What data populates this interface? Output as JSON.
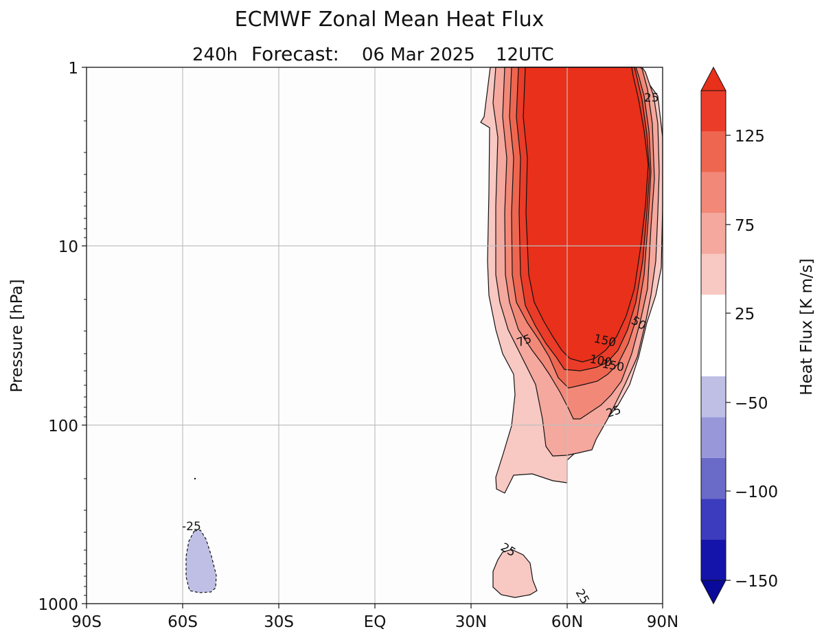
{
  "chart_data": {
    "type": "contour",
    "title": "ECMWF Zonal Mean Heat Flux",
    "subtitle": "240h Forecast:  06 Mar 2025  12UTC",
    "subtitle_parts": [
      "240h",
      "Forecast:",
      "06 Mar 2025",
      "12UTC"
    ],
    "xlabel": "",
    "ylabel": "Pressure [hPa]",
    "x_ticks": [
      "90S",
      "60S",
      "30S",
      "EQ",
      "30N",
      "60N",
      "90N"
    ],
    "x_tick_values": [
      -90,
      -60,
      -30,
      0,
      30,
      60,
      90
    ],
    "xlim": [
      -90,
      90
    ],
    "y_scale": "log",
    "y_inverted": true,
    "ylim": [
      1000,
      1
    ],
    "y_ticks": [
      "1",
      "10",
      "100",
      "1000"
    ],
    "y_tick_values": [
      1,
      10,
      100,
      1000
    ],
    "grid": true,
    "colorbar": {
      "label": "Heat Flux [K  m/s]",
      "tick_labels": [
        "125",
        "75",
        "25",
        "−50",
        "−100",
        "−150"
      ],
      "tick_values": [
        125,
        75,
        25,
        -50,
        -100,
        -150
      ],
      "levels": [
        -150,
        -125,
        -100,
        -75,
        -50,
        -25,
        25,
        50,
        75,
        100,
        125,
        150
      ],
      "colors": [
        "#1414aa",
        "#3c3cbe",
        "#6a6ac8",
        "#9797d9",
        "#bfbfe6",
        "#ffffff",
        "#f8c8c2",
        "#f4a89e",
        "#f28878",
        "#ee6650",
        "#ea3c28"
      ],
      "extend": "both",
      "under_color": "#0a0a9a",
      "over_color": "#e8301a"
    },
    "contour_labels": [
      "25",
      "25",
      "25",
      "25",
      "50",
      "75",
      "150",
      "100",
      "150",
      "-25",
      "25"
    ],
    "regions": [
      {
        "name": "nh-positive-core",
        "min_level": 25,
        "max_level": ">150",
        "lat_range": [
          32,
          90
        ],
        "pressure_range": [
          1000,
          1
        ]
      },
      {
        "name": "nh-lower-tropo",
        "min_level": 25,
        "max_level": 50,
        "lat_range": [
          37,
          48
        ],
        "pressure_range": [
          1000,
          300
        ]
      },
      {
        "name": "sh-negative",
        "min_level": -50,
        "max_level": -25,
        "lat_range": [
          -63,
          -56
        ],
        "pressure_range": [
          900,
          400
        ]
      }
    ]
  }
}
